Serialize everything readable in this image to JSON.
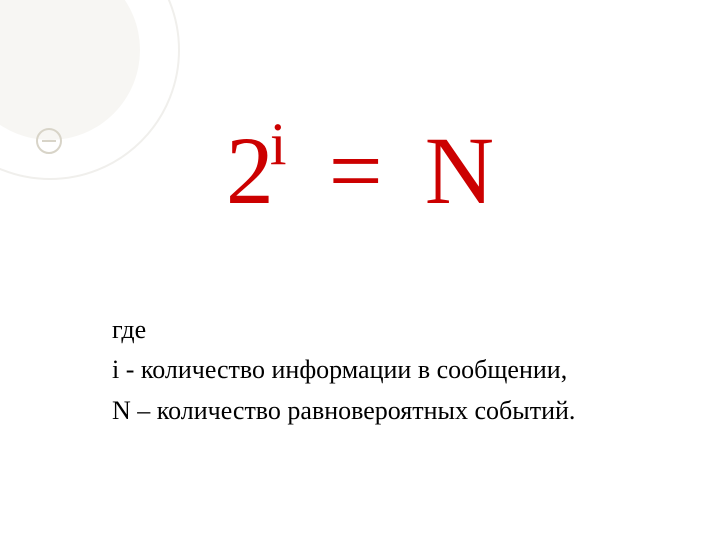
{
  "slide": {
    "background_color": "#ffffff",
    "decoration": {
      "arc_outer_color": "#f0efec",
      "arc_inner_fill": "#f7f6f3",
      "small_circle_border": "#d8d4c8"
    },
    "formula": {
      "base": "2",
      "exponent": "i",
      "equals": "=",
      "rhs": "N",
      "color": "#cc0000",
      "fontsize_base": 96,
      "fontsize_exp": 60,
      "font_family": "Times New Roman"
    },
    "text": {
      "line1": "где",
      "line2": "i - количество информации в сообщении,",
      "line3": "N – количество равновероятных событий.",
      "color": "#000000",
      "fontsize": 26,
      "font_family": "Times New Roman"
    }
  }
}
